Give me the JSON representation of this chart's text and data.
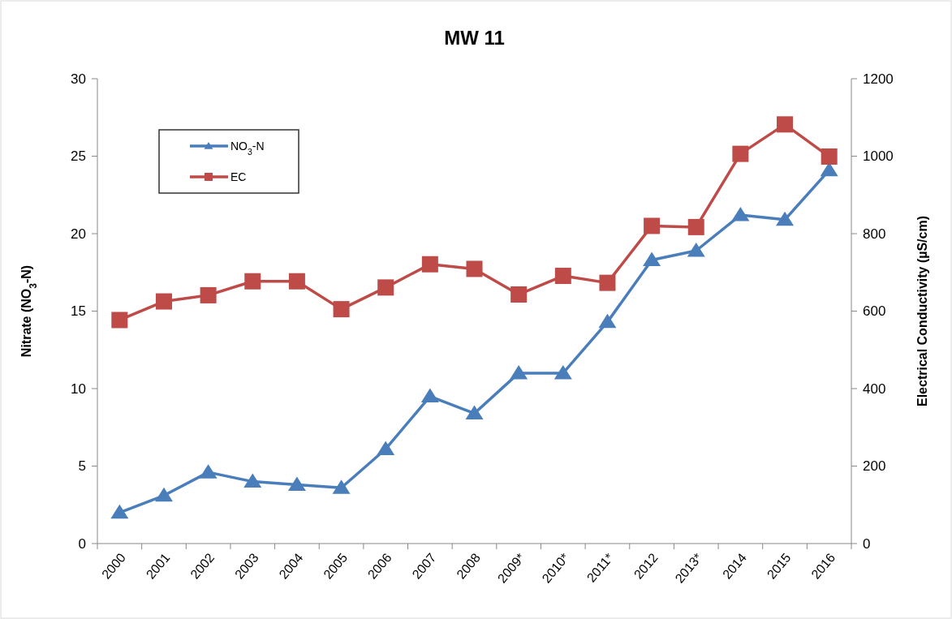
{
  "chart_data": {
    "type": "line",
    "title": "MW 11",
    "ylabel": "Nitrate (NO$_{3}$-N)",
    "y2label": "Electrical Conductivity (µS/cm)",
    "categories": [
      "2000",
      "2001",
      "2002",
      "2003",
      "2004",
      "2005",
      "2006",
      "2007",
      "2008",
      "2009*",
      "2010*",
      "2011*",
      "2012",
      "2013*",
      "2014",
      "2015",
      "2016"
    ],
    "series": [
      {
        "name": "NO$_{3}$-N",
        "color": "#4a7ebb",
        "marker": "triangle",
        "values": [
          2.0,
          3.1,
          4.6,
          4.0,
          3.8,
          3.6,
          6.1,
          9.5,
          8.4,
          11.0,
          11.0,
          14.3,
          18.3,
          18.9,
          21.2,
          20.9,
          24.1
        ]
      },
      {
        "name": "EC",
        "color": "#be4b48",
        "marker": "square",
        "axis": "y2",
        "values": [
          577,
          625,
          641,
          677,
          677,
          605,
          661,
          721,
          709,
          643,
          691,
          673,
          820,
          817,
          1006,
          1082,
          999
        ]
      }
    ],
    "ylim": [
      0,
      30
    ],
    "yticks": [
      0,
      5,
      10,
      15,
      20,
      25,
      30
    ],
    "y2lim": [
      0,
      1200
    ],
    "y2ticks": [
      0,
      200,
      400,
      600,
      800,
      1000,
      1200
    ],
    "grid": false,
    "legend": "top left",
    "line_style": "solid"
  }
}
